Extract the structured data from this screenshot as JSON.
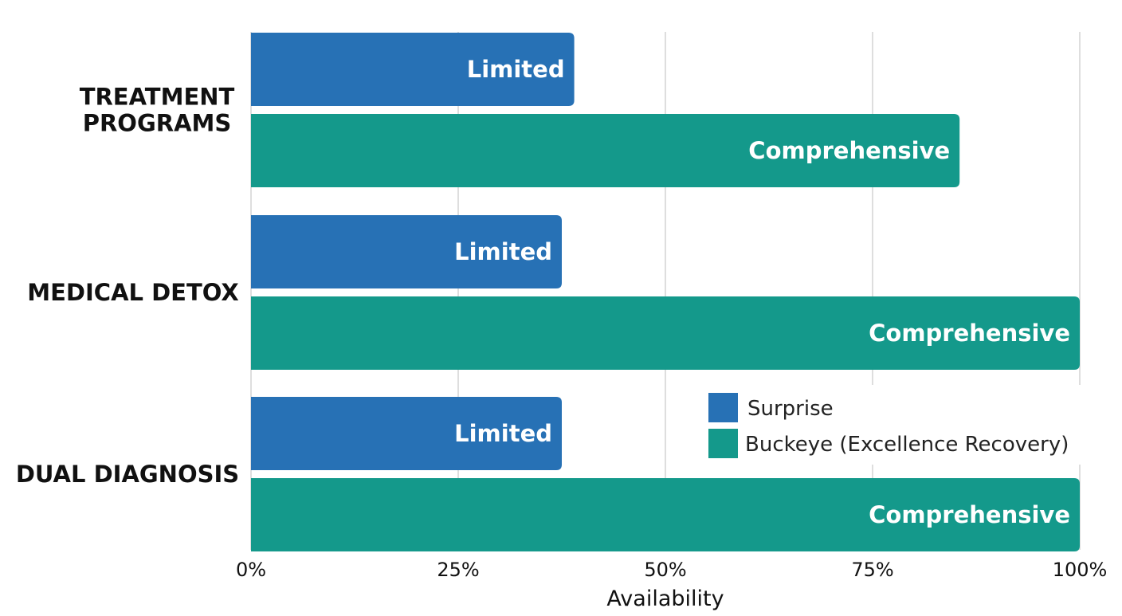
{
  "chart_data": {
    "type": "bar",
    "orientation": "horizontal",
    "categories": [
      [
        "TREATMENT",
        "PROGRAMS"
      ],
      [
        "MEDICAL DETOX"
      ],
      [
        "DUAL DIAGNOSIS"
      ]
    ],
    "series": [
      {
        "name": "Surprise",
        "color": "#2771b5",
        "values": [
          39,
          37.5,
          37.5
        ],
        "labels": [
          "Limited",
          "Limited",
          "Limited"
        ]
      },
      {
        "name": "Buckeye (Excellence Recovery)",
        "color": "#14998b",
        "values": [
          85.5,
          100,
          100
        ],
        "labels": [
          "Comprehensive",
          "Comprehensive",
          "Comprehensive"
        ]
      }
    ],
    "xlabel": "Availability",
    "xlim": [
      0,
      100
    ],
    "xticks": [
      0,
      25,
      50,
      75,
      100
    ],
    "xtick_labels": [
      "0%",
      "25%",
      "50%",
      "75%",
      "100%"
    ],
    "grid": "vertical",
    "legend_position": "lower-right"
  }
}
